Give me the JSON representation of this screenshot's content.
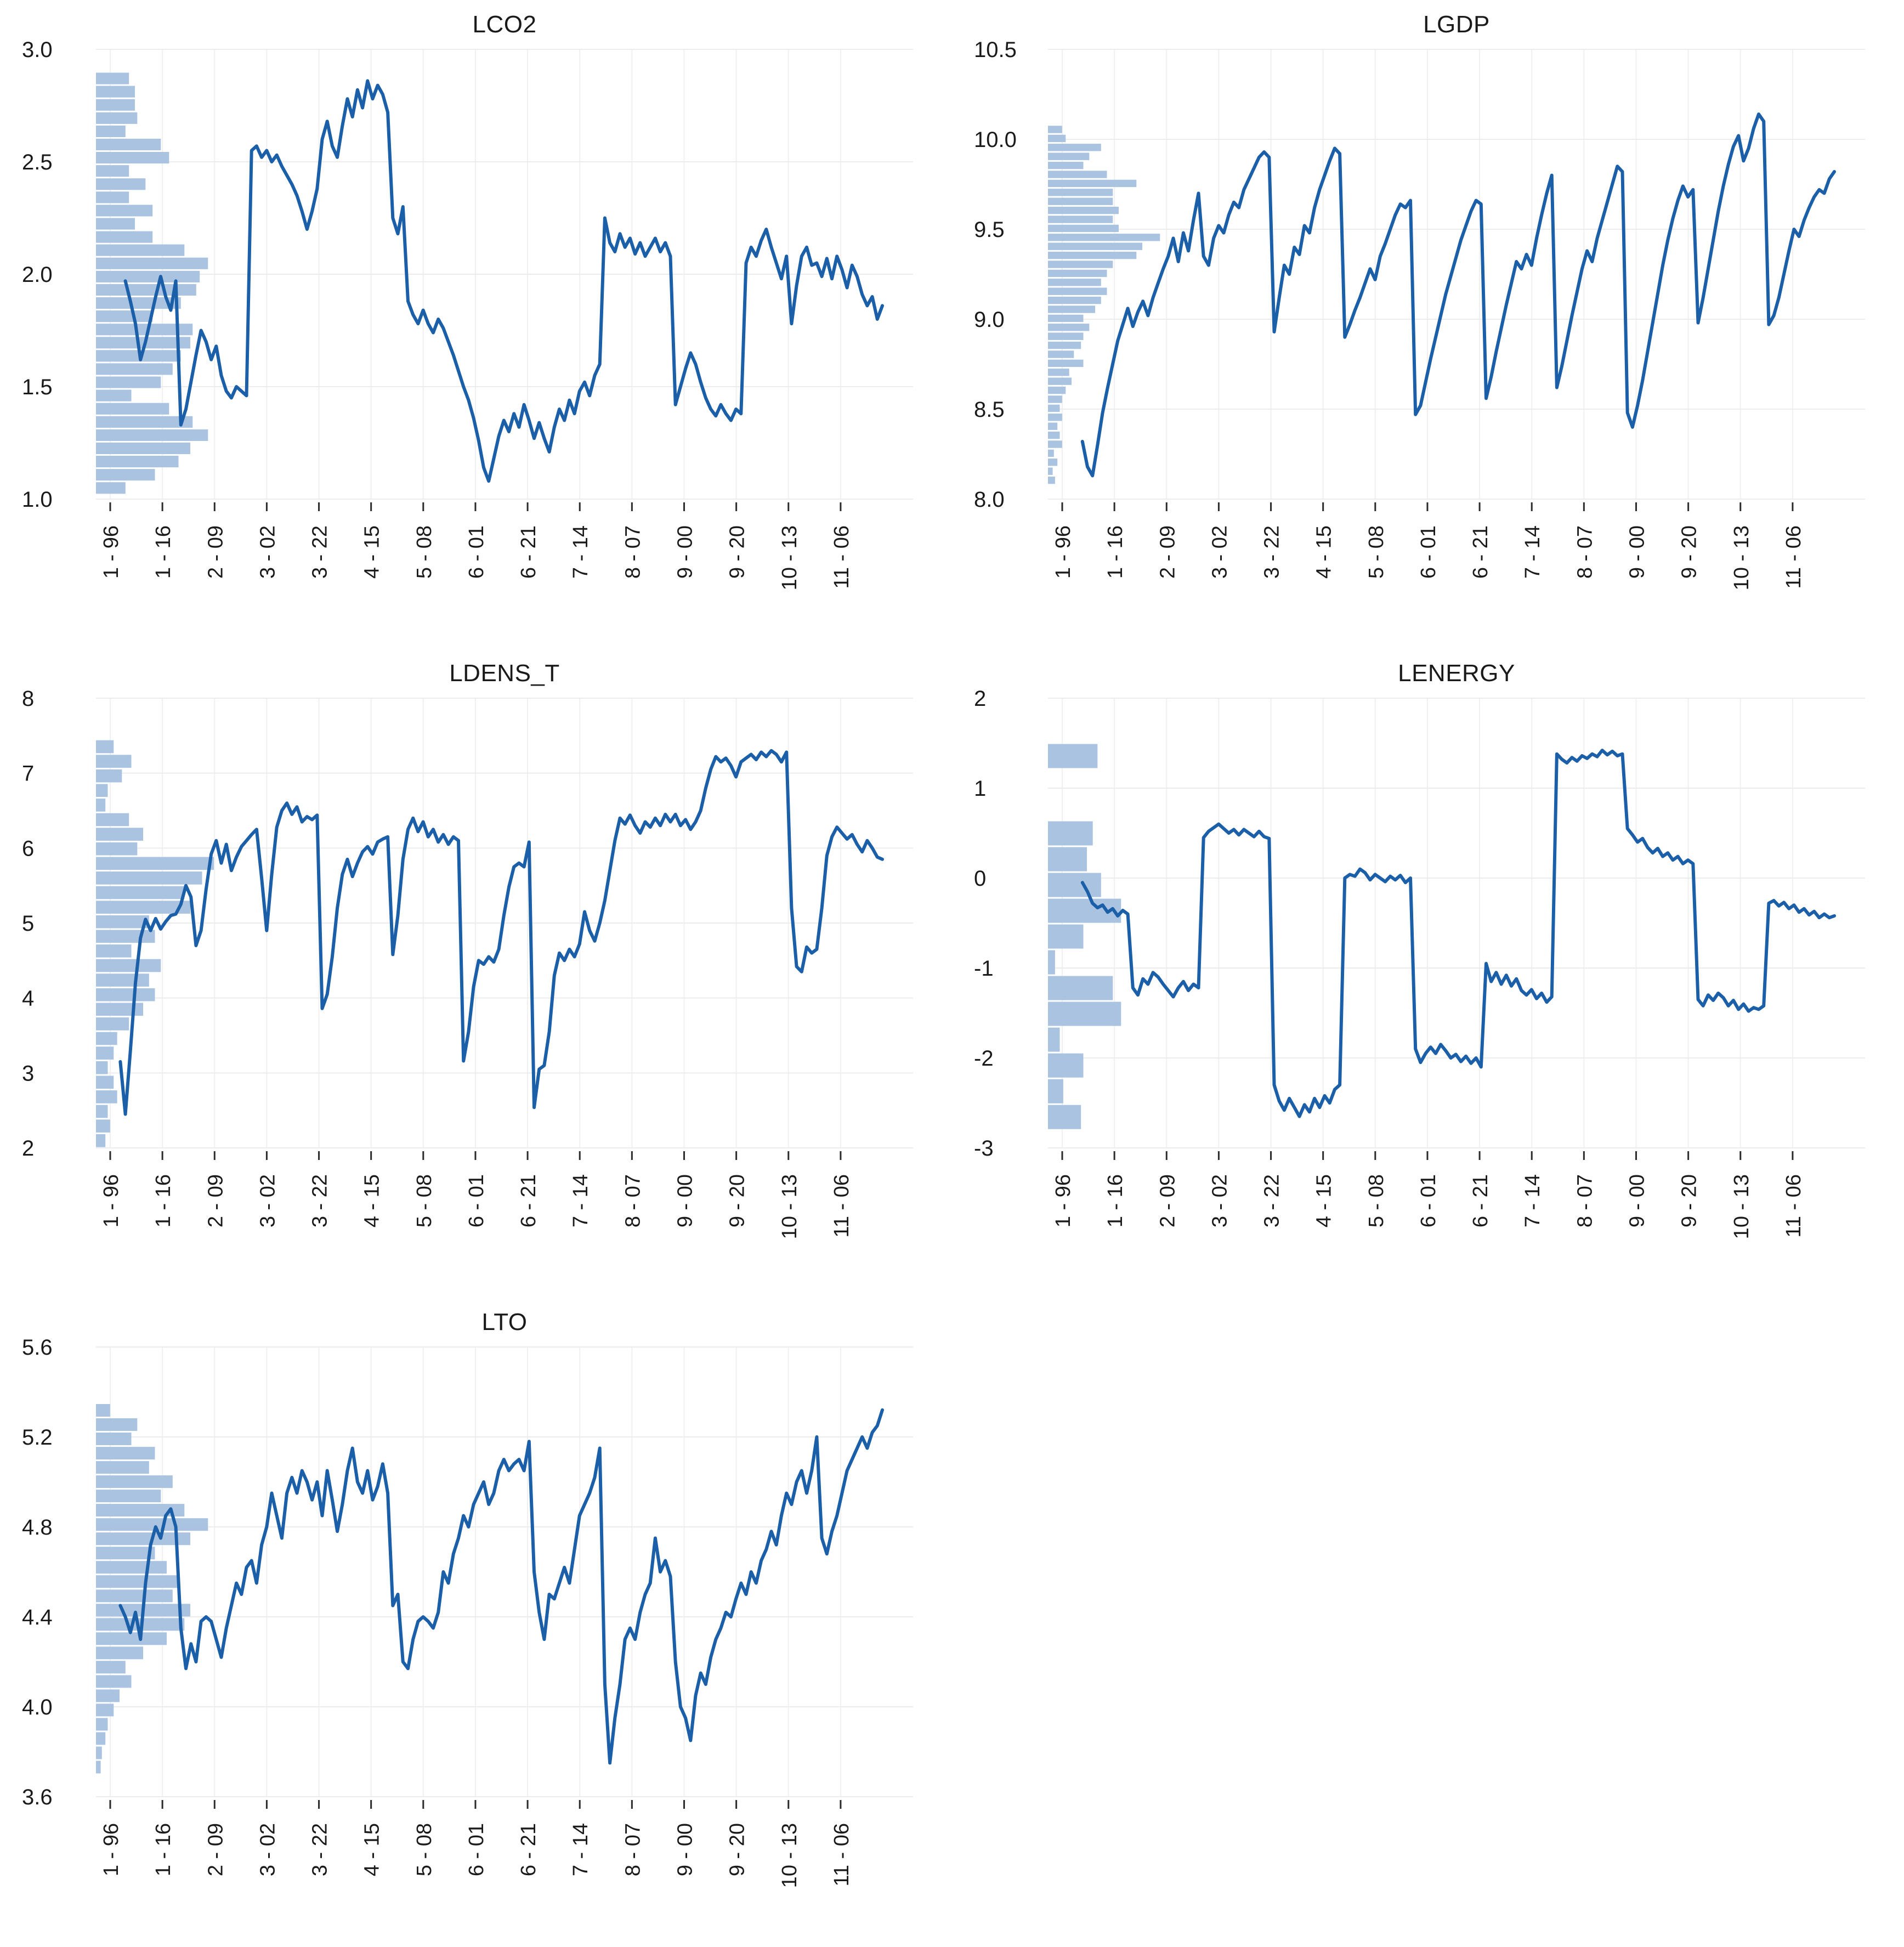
{
  "colors": {
    "line": "#1A5FA8",
    "histogram": "#A9C3E1",
    "grid": "#ECECEC",
    "grid_vertical": "#F0F0F0",
    "tick": "#2B2B2B",
    "text": "#1A1A1A"
  },
  "x_tick_labels": [
    "1 - 96",
    "1 - 16",
    "2 - 09",
    "3 - 02",
    "3 - 22",
    "4 - 15",
    "5 - 08",
    "6 - 01",
    "6 - 21",
    "7 - 14",
    "8 - 07",
    "9 - 00",
    "9 - 20",
    "10 - 13",
    "11 - 06"
  ],
  "chart_data": [
    {
      "type": "line",
      "title": "LCO2",
      "xlabel": "",
      "ylabel": "",
      "ylim": [
        1.0,
        3.0
      ],
      "grid": true,
      "legend_position": "none",
      "yticks": [
        {
          "value": 3.0,
          "label": "3.0"
        },
        {
          "value": 2.5,
          "label": "2.5"
        },
        {
          "value": 2.0,
          "label": "2.0"
        },
        {
          "value": 1.5,
          "label": "1.5"
        },
        {
          "value": 1.0,
          "label": "1.0"
        }
      ],
      "marginal_histogram": {
        "range": [
          2.9,
          1.02
        ],
        "rel_lengths": [
          0.28,
          0.33,
          0.33,
          0.35,
          0.25,
          0.55,
          0.62,
          0.28,
          0.42,
          0.28,
          0.48,
          0.33,
          0.48,
          0.75,
          0.95,
          0.88,
          0.85,
          0.72,
          0.48,
          0.82,
          0.8,
          0.72,
          0.65,
          0.55,
          0.3,
          0.62,
          0.82,
          0.95,
          0.8,
          0.7,
          0.5,
          0.25
        ]
      },
      "series": {
        "name": "LCO2",
        "values": [
          null,
          null,
          null,
          1.97,
          1.88,
          1.78,
          1.62,
          1.7,
          1.8,
          1.9,
          1.99,
          1.9,
          1.84,
          1.97,
          1.33,
          1.4,
          1.52,
          1.64,
          1.75,
          1.7,
          1.62,
          1.68,
          1.55,
          1.48,
          1.45,
          1.5,
          1.48,
          1.46,
          2.55,
          2.57,
          2.52,
          2.55,
          2.5,
          2.53,
          2.48,
          2.44,
          2.4,
          2.35,
          2.28,
          2.2,
          2.28,
          2.38,
          2.6,
          2.68,
          2.57,
          2.52,
          2.66,
          2.78,
          2.7,
          2.82,
          2.74,
          2.86,
          2.78,
          2.84,
          2.8,
          2.72,
          2.25,
          2.18,
          2.3,
          1.88,
          1.82,
          1.78,
          1.84,
          1.78,
          1.74,
          1.8,
          1.76,
          1.7,
          1.64,
          1.57,
          1.5,
          1.44,
          1.36,
          1.26,
          1.14,
          1.08,
          1.18,
          1.28,
          1.35,
          1.3,
          1.38,
          1.32,
          1.42,
          1.35,
          1.27,
          1.34,
          1.27,
          1.21,
          1.32,
          1.4,
          1.35,
          1.44,
          1.38,
          1.48,
          1.52,
          1.46,
          1.55,
          1.6,
          2.25,
          2.14,
          2.1,
          2.18,
          2.12,
          2.16,
          2.09,
          2.14,
          2.08,
          2.12,
          2.16,
          2.1,
          2.14,
          2.08,
          1.42,
          1.5,
          1.58,
          1.65,
          1.6,
          1.52,
          1.45,
          1.4,
          1.37,
          1.42,
          1.38,
          1.35,
          1.4,
          1.38,
          2.05,
          2.12,
          2.08,
          2.15,
          2.2,
          2.12,
          2.05,
          1.98,
          2.08,
          1.78,
          1.95,
          2.08,
          2.12,
          2.04,
          2.05,
          1.99,
          2.07,
          1.98,
          2.08,
          2.02,
          1.94,
          2.04,
          1.99,
          1.91,
          1.86,
          1.9,
          1.8,
          1.86
        ]
      }
    },
    {
      "type": "line",
      "title": "LGDP",
      "xlabel": "",
      "ylabel": "",
      "ylim": [
        8.0,
        10.5
      ],
      "grid": true,
      "legend_position": "none",
      "yticks": [
        {
          "value": 10.5,
          "label": "10.5"
        },
        {
          "value": 10.0,
          "label": "10.0"
        },
        {
          "value": 9.5,
          "label": "9.5"
        },
        {
          "value": 9.0,
          "label": "9.0"
        },
        {
          "value": 8.5,
          "label": "8.5"
        },
        {
          "value": 8.0,
          "label": "8.0"
        }
      ],
      "marginal_histogram": {
        "range": [
          10.08,
          8.08
        ],
        "rel_lengths": [
          0.12,
          0.15,
          0.45,
          0.35,
          0.3,
          0.5,
          0.75,
          0.55,
          0.55,
          0.6,
          0.55,
          0.6,
          0.95,
          0.8,
          0.75,
          0.55,
          0.5,
          0.45,
          0.5,
          0.45,
          0.4,
          0.3,
          0.35,
          0.3,
          0.28,
          0.22,
          0.3,
          0.18,
          0.2,
          0.15,
          0.12,
          0.1,
          0.12,
          0.08,
          0.1,
          0.12,
          0.05,
          0.08,
          0.04,
          0.06
        ]
      },
      "series": {
        "name": "LGDP",
        "values": [
          null,
          null,
          null,
          null,
          8.32,
          8.18,
          8.13,
          8.3,
          8.48,
          8.62,
          8.75,
          8.88,
          8.97,
          9.06,
          8.96,
          9.04,
          9.1,
          9.02,
          9.12,
          9.2,
          9.28,
          9.35,
          9.45,
          9.32,
          9.48,
          9.38,
          9.55,
          9.7,
          9.35,
          9.3,
          9.45,
          9.52,
          9.48,
          9.58,
          9.65,
          9.62,
          9.72,
          9.78,
          9.84,
          9.9,
          9.93,
          9.9,
          8.93,
          9.12,
          9.3,
          9.25,
          9.4,
          9.36,
          9.52,
          9.48,
          9.62,
          9.72,
          9.8,
          9.88,
          9.95,
          9.92,
          8.9,
          8.97,
          9.05,
          9.12,
          9.2,
          9.28,
          9.22,
          9.35,
          9.42,
          9.5,
          9.58,
          9.64,
          9.62,
          9.66,
          8.47,
          8.52,
          8.65,
          8.78,
          8.9,
          9.02,
          9.14,
          9.24,
          9.34,
          9.44,
          9.52,
          9.6,
          9.66,
          9.64,
          8.56,
          8.68,
          8.82,
          8.95,
          9.08,
          9.2,
          9.32,
          9.28,
          9.36,
          9.3,
          9.45,
          9.58,
          9.7,
          9.8,
          8.62,
          8.74,
          8.88,
          9.02,
          9.15,
          9.28,
          9.38,
          9.32,
          9.45,
          9.55,
          9.65,
          9.75,
          9.85,
          9.82,
          8.48,
          8.4,
          8.52,
          8.66,
          8.82,
          8.98,
          9.14,
          9.3,
          9.44,
          9.56,
          9.66,
          9.74,
          9.68,
          9.72,
          8.98,
          9.12,
          9.28,
          9.44,
          9.6,
          9.74,
          9.86,
          9.96,
          10.02,
          9.88,
          9.95,
          10.06,
          10.14,
          10.1,
          8.97,
          9.02,
          9.12,
          9.25,
          9.38,
          9.5,
          9.46,
          9.55,
          9.62,
          9.68,
          9.72,
          9.7,
          9.78,
          9.82
        ]
      }
    },
    {
      "type": "line",
      "title": "LDENS_T",
      "xlabel": "",
      "ylabel": "",
      "ylim": [
        2,
        8
      ],
      "grid": true,
      "legend_position": "none",
      "yticks": [
        {
          "value": 8,
          "label": "8"
        },
        {
          "value": 7,
          "label": "7"
        },
        {
          "value": 6,
          "label": "6"
        },
        {
          "value": 5,
          "label": "5"
        },
        {
          "value": 4,
          "label": "4"
        },
        {
          "value": 3,
          "label": "3"
        },
        {
          "value": 2,
          "label": "2"
        }
      ],
      "marginal_histogram": {
        "range": [
          7.45,
          2.0
        ],
        "rel_lengths": [
          0.15,
          0.3,
          0.22,
          0.1,
          0.08,
          0.28,
          0.4,
          0.35,
          1.0,
          0.9,
          0.75,
          0.8,
          0.45,
          0.5,
          0.3,
          0.55,
          0.45,
          0.5,
          0.4,
          0.28,
          0.18,
          0.15,
          0.1,
          0.15,
          0.18,
          0.1,
          0.12,
          0.08
        ]
      },
      "series": {
        "name": "LDENS_T",
        "values": [
          null,
          null,
          3.15,
          2.45,
          3.3,
          4.2,
          4.8,
          5.05,
          4.9,
          5.06,
          4.92,
          5.02,
          5.1,
          5.12,
          5.25,
          5.5,
          5.35,
          4.7,
          4.9,
          5.45,
          5.92,
          6.1,
          5.8,
          6.05,
          5.7,
          5.88,
          6.02,
          6.1,
          6.18,
          6.25,
          5.6,
          4.9,
          5.65,
          6.28,
          6.5,
          6.6,
          6.45,
          6.55,
          6.35,
          6.42,
          6.38,
          6.44,
          3.86,
          4.05,
          4.55,
          5.2,
          5.65,
          5.85,
          5.62,
          5.8,
          5.95,
          6.02,
          5.92,
          6.08,
          6.12,
          6.15,
          4.58,
          5.1,
          5.85,
          6.25,
          6.4,
          6.22,
          6.35,
          6.15,
          6.25,
          6.08,
          6.18,
          6.05,
          6.15,
          6.1,
          3.16,
          3.55,
          4.15,
          4.5,
          4.45,
          4.55,
          4.48,
          4.65,
          5.1,
          5.48,
          5.75,
          5.8,
          5.75,
          6.08,
          2.54,
          3.05,
          3.1,
          3.55,
          4.3,
          4.6,
          4.5,
          4.65,
          4.55,
          4.72,
          5.15,
          4.9,
          4.76,
          5.0,
          5.3,
          5.7,
          6.1,
          6.4,
          6.32,
          6.44,
          6.3,
          6.2,
          6.35,
          6.28,
          6.4,
          6.3,
          6.45,
          6.35,
          6.45,
          6.3,
          6.38,
          6.25,
          6.35,
          6.5,
          6.8,
          7.05,
          7.22,
          7.15,
          7.2,
          7.1,
          6.95,
          7.15,
          7.2,
          7.25,
          7.18,
          7.28,
          7.22,
          7.3,
          7.25,
          7.15,
          7.28,
          5.2,
          4.42,
          4.35,
          4.68,
          4.6,
          4.65,
          5.2,
          5.9,
          6.15,
          6.28,
          6.2,
          6.12,
          6.18,
          6.05,
          5.95,
          6.1,
          6.0,
          5.88,
          5.85
        ]
      }
    },
    {
      "type": "line",
      "title": "LENERGY",
      "xlabel": "",
      "ylabel": "",
      "ylim": [
        -3,
        2
      ],
      "grid": true,
      "legend_position": "none",
      "yticks": [
        {
          "value": 2,
          "label": "2"
        },
        {
          "value": 1,
          "label": "1"
        },
        {
          "value": 0,
          "label": "0"
        },
        {
          "value": -1,
          "label": "-1"
        },
        {
          "value": -2,
          "label": "-2"
        },
        {
          "value": -3,
          "label": "-3"
        }
      ],
      "marginal_histogram": {
        "range": [
          1.5,
          -2.8
        ],
        "rel_lengths": [
          0.42,
          0.0,
          0.0,
          0.38,
          0.33,
          0.45,
          0.62,
          0.3,
          0.06,
          0.55,
          0.62,
          0.1,
          0.3,
          0.13,
          0.28
        ]
      },
      "series": {
        "name": "LENERGY",
        "values": [
          null,
          null,
          null,
          null,
          -0.05,
          -0.15,
          -0.28,
          -0.33,
          -0.3,
          -0.38,
          -0.34,
          -0.42,
          -0.36,
          -0.4,
          -1.22,
          -1.3,
          -1.12,
          -1.18,
          -1.05,
          -1.1,
          -1.18,
          -1.25,
          -1.32,
          -1.22,
          -1.15,
          -1.25,
          -1.18,
          -1.22,
          0.45,
          0.52,
          0.56,
          0.6,
          0.55,
          0.5,
          0.54,
          0.48,
          0.54,
          0.5,
          0.46,
          0.52,
          0.46,
          0.44,
          -2.3,
          -2.48,
          -2.58,
          -2.45,
          -2.55,
          -2.65,
          -2.52,
          -2.6,
          -2.45,
          -2.55,
          -2.42,
          -2.5,
          -2.35,
          -2.3,
          0.0,
          0.04,
          0.02,
          0.1,
          0.06,
          -0.02,
          0.04,
          0.0,
          -0.04,
          0.02,
          -0.02,
          0.03,
          -0.05,
          0.0,
          -1.9,
          -2.05,
          -1.95,
          -1.88,
          -1.95,
          -1.85,
          -1.92,
          -2.0,
          -1.96,
          -2.04,
          -1.98,
          -2.06,
          -2.0,
          -2.1,
          -0.95,
          -1.15,
          -1.05,
          -1.18,
          -1.08,
          -1.2,
          -1.12,
          -1.25,
          -1.3,
          -1.24,
          -1.34,
          -1.28,
          -1.38,
          -1.32,
          1.38,
          1.32,
          1.28,
          1.34,
          1.3,
          1.36,
          1.33,
          1.38,
          1.35,
          1.42,
          1.37,
          1.41,
          1.36,
          1.38,
          0.55,
          0.48,
          0.4,
          0.44,
          0.34,
          0.28,
          0.33,
          0.24,
          0.28,
          0.2,
          0.24,
          0.16,
          0.2,
          0.16,
          -1.35,
          -1.42,
          -1.3,
          -1.36,
          -1.28,
          -1.33,
          -1.42,
          -1.36,
          -1.46,
          -1.4,
          -1.48,
          -1.44,
          -1.46,
          -1.42,
          -0.28,
          -0.25,
          -0.31,
          -0.27,
          -0.34,
          -0.3,
          -0.38,
          -0.34,
          -0.41,
          -0.37,
          -0.44,
          -0.4,
          -0.44,
          -0.42
        ]
      }
    },
    {
      "type": "line",
      "title": "LTO",
      "xlabel": "",
      "ylabel": "",
      "ylim": [
        3.6,
        5.6
      ],
      "grid": true,
      "legend_position": "none",
      "yticks": [
        {
          "value": 5.6,
          "label": "5.6"
        },
        {
          "value": 5.2,
          "label": "5.2"
        },
        {
          "value": 4.8,
          "label": "4.8"
        },
        {
          "value": 4.4,
          "label": "4.4"
        },
        {
          "value": 4.0,
          "label": "4.0"
        },
        {
          "value": 3.6,
          "label": "3.6"
        }
      ],
      "marginal_histogram": {
        "range": [
          5.35,
          3.7
        ],
        "rel_lengths": [
          0.12,
          0.35,
          0.3,
          0.5,
          0.45,
          0.65,
          0.55,
          0.75,
          0.95,
          0.8,
          0.5,
          0.6,
          0.7,
          0.65,
          0.8,
          0.75,
          0.6,
          0.4,
          0.25,
          0.3,
          0.2,
          0.15,
          0.1,
          0.08,
          0.05,
          0.04
        ]
      },
      "series": {
        "name": "LTO",
        "values": [
          null,
          null,
          4.45,
          4.4,
          4.33,
          4.42,
          4.3,
          4.55,
          4.72,
          4.8,
          4.75,
          4.85,
          4.88,
          4.8,
          4.35,
          4.17,
          4.28,
          4.2,
          4.38,
          4.4,
          4.38,
          4.3,
          4.22,
          4.35,
          4.45,
          4.55,
          4.5,
          4.62,
          4.65,
          4.55,
          4.72,
          4.8,
          4.95,
          4.85,
          4.75,
          4.95,
          5.02,
          4.95,
          5.05,
          5.0,
          4.92,
          5.0,
          4.85,
          5.05,
          4.92,
          4.78,
          4.9,
          5.05,
          5.15,
          5.0,
          4.95,
          5.05,
          4.92,
          4.98,
          5.08,
          4.95,
          4.45,
          4.5,
          4.2,
          4.17,
          4.3,
          4.38,
          4.4,
          4.38,
          4.35,
          4.42,
          4.6,
          4.55,
          4.68,
          4.75,
          4.85,
          4.8,
          4.9,
          4.95,
          5.0,
          4.9,
          4.95,
          5.05,
          5.1,
          5.05,
          5.08,
          5.1,
          5.05,
          5.18,
          4.6,
          4.42,
          4.3,
          4.5,
          4.48,
          4.55,
          4.62,
          4.55,
          4.7,
          4.85,
          4.9,
          4.95,
          5.02,
          5.15,
          4.1,
          3.75,
          3.95,
          4.1,
          4.3,
          4.35,
          4.3,
          4.42,
          4.5,
          4.55,
          4.75,
          4.6,
          4.65,
          4.58,
          4.2,
          4.0,
          3.95,
          3.85,
          4.05,
          4.15,
          4.1,
          4.22,
          4.3,
          4.35,
          4.42,
          4.4,
          4.48,
          4.55,
          4.5,
          4.6,
          4.55,
          4.65,
          4.7,
          4.78,
          4.72,
          4.85,
          4.95,
          4.9,
          5.0,
          5.05,
          4.95,
          5.05,
          5.2,
          4.75,
          4.68,
          4.78,
          4.85,
          4.95,
          5.05,
          5.1,
          5.15,
          5.2,
          5.15,
          5.22,
          5.25,
          5.32
        ]
      }
    }
  ]
}
